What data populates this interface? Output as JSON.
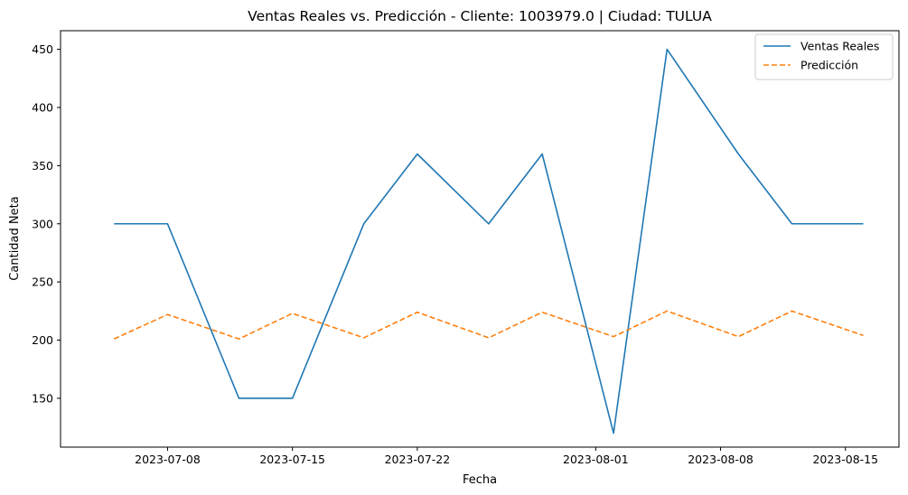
{
  "chart_data": {
    "type": "line",
    "title": "Ventas Reales vs. Predicción - Cliente: 1003979.0 | Ciudad: TULUA",
    "xlabel": "Fecha",
    "ylabel": "Cantidad Neta",
    "x": [
      "2023-07-05",
      "2023-07-08",
      "2023-07-12",
      "2023-07-15",
      "2023-07-19",
      "2023-07-22",
      "2023-07-26",
      "2023-07-29",
      "2023-08-02",
      "2023-08-05",
      "2023-08-09",
      "2023-08-12",
      "2023-08-16"
    ],
    "xlim": [
      "2023-07-02",
      "2023-08-18"
    ],
    "ylim": [
      108,
      466
    ],
    "x_ticks": [
      "2023-07-08",
      "2023-07-15",
      "2023-07-22",
      "2023-08-01",
      "2023-08-08",
      "2023-08-15"
    ],
    "y_ticks": [
      150,
      200,
      250,
      300,
      350,
      400,
      450
    ],
    "grid": false,
    "legend_position": "top-right",
    "series": [
      {
        "name": "Ventas Reales",
        "color": "#1f77b4",
        "style": "solid",
        "values": [
          300,
          300,
          150,
          150,
          300,
          360,
          300,
          360,
          120,
          450,
          360,
          300,
          300
        ]
      },
      {
        "name": "Predicción",
        "color": "#ff7f0e",
        "style": "dashed",
        "values": [
          201,
          222,
          201,
          223,
          202,
          224,
          202,
          224,
          203,
          225,
          203,
          225,
          204
        ]
      }
    ]
  }
}
